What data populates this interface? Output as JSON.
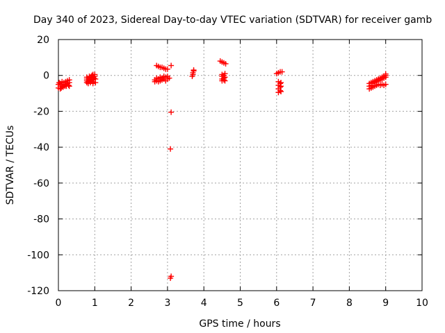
{
  "chart_data": {
    "type": "scatter",
    "title": "Day 340 of 2023, Sidereal Day-to-day VTEC variation (SDTVAR) for receiver gamb",
    "xlabel": "GPS time / hours",
    "ylabel": "SDTVAR / TECUs",
    "xlim": [
      0,
      10
    ],
    "ylim": [
      -120,
      20
    ],
    "grid": true,
    "x_ticks": [
      0,
      1,
      2,
      3,
      4,
      5,
      6,
      7,
      8,
      9,
      10
    ],
    "y_ticks": [
      -120,
      -100,
      -80,
      -60,
      -40,
      -20,
      0,
      20
    ],
    "x_tick_labels": [
      "0",
      "1",
      "2",
      "3",
      "4",
      "5",
      "6",
      "7",
      "8",
      "9",
      "10"
    ],
    "y_tick_labels": [
      "-120",
      "-100",
      "-80",
      "-60",
      "-40",
      "-20",
      "0",
      "20"
    ],
    "marker": "+",
    "color": "#ff0000",
    "series": [
      {
        "name": "SDTVAR",
        "points": [
          [
            0.0,
            -7
          ],
          [
            0.0,
            -5
          ],
          [
            0.02,
            -4
          ],
          [
            0.05,
            -7.5
          ],
          [
            0.05,
            -6
          ],
          [
            0.05,
            -4.5
          ],
          [
            0.08,
            -7
          ],
          [
            0.1,
            -6
          ],
          [
            0.1,
            -5
          ],
          [
            0.1,
            -3.5
          ],
          [
            0.13,
            -6.5
          ],
          [
            0.15,
            -5.5
          ],
          [
            0.15,
            -4
          ],
          [
            0.18,
            -6
          ],
          [
            0.2,
            -5
          ],
          [
            0.2,
            -3.5
          ],
          [
            0.22,
            -6
          ],
          [
            0.25,
            -4.5
          ],
          [
            0.25,
            -3
          ],
          [
            0.28,
            -5.5
          ],
          [
            0.3,
            -4
          ],
          [
            0.3,
            -2.5
          ],
          [
            0.3,
            -6
          ],
          [
            0.78,
            -4
          ],
          [
            0.78,
            -3
          ],
          [
            0.78,
            -2
          ],
          [
            0.78,
            -1
          ],
          [
            0.82,
            -4.5
          ],
          [
            0.82,
            -3.5
          ],
          [
            0.85,
            -2.5
          ],
          [
            0.85,
            -1.5
          ],
          [
            0.85,
            -0.5
          ],
          [
            0.88,
            -4
          ],
          [
            0.9,
            -3
          ],
          [
            0.9,
            -2
          ],
          [
            0.9,
            -1
          ],
          [
            0.92,
            0
          ],
          [
            0.95,
            -4.5
          ],
          [
            0.95,
            -3.5
          ],
          [
            0.95,
            -2.5
          ],
          [
            0.98,
            -1.5
          ],
          [
            1.0,
            -0.5
          ],
          [
            1.0,
            0.5
          ],
          [
            1.02,
            -4
          ],
          [
            1.02,
            -2
          ],
          [
            0.95,
            0.5
          ],
          [
            2.65,
            -3.5
          ],
          [
            2.65,
            -2.5
          ],
          [
            2.7,
            -3
          ],
          [
            2.7,
            -1.5
          ],
          [
            2.75,
            -3.5
          ],
          [
            2.75,
            -2
          ],
          [
            2.8,
            -1
          ],
          [
            2.8,
            -3
          ],
          [
            2.85,
            -2.5
          ],
          [
            2.85,
            -1.5
          ],
          [
            2.9,
            -2
          ],
          [
            2.9,
            -0.5
          ],
          [
            2.95,
            -3
          ],
          [
            2.95,
            -1
          ],
          [
            3.0,
            -2
          ],
          [
            3.0,
            -0.5
          ],
          [
            3.05,
            -1.5
          ],
          [
            2.7,
            5.5
          ],
          [
            2.75,
            5
          ],
          [
            2.8,
            4.5
          ],
          [
            2.85,
            4.5
          ],
          [
            2.9,
            4
          ],
          [
            2.95,
            3.5
          ],
          [
            3.0,
            3.5
          ],
          [
            3.1,
            5.5
          ],
          [
            3.1,
            -20.5
          ],
          [
            3.08,
            -41
          ],
          [
            3.1,
            -112
          ],
          [
            3.08,
            -113
          ],
          [
            3.68,
            -0.5
          ],
          [
            3.7,
            0.5
          ],
          [
            3.7,
            1.5
          ],
          [
            3.72,
            2.5
          ],
          [
            3.72,
            3
          ],
          [
            4.45,
            8
          ],
          [
            4.5,
            7.5
          ],
          [
            4.55,
            7
          ],
          [
            4.6,
            6.5
          ],
          [
            4.5,
            -3
          ],
          [
            4.5,
            -2
          ],
          [
            4.5,
            -0.5
          ],
          [
            4.5,
            0.5
          ],
          [
            4.55,
            -2.5
          ],
          [
            4.55,
            -1.5
          ],
          [
            4.55,
            0
          ],
          [
            4.58,
            -3
          ],
          [
            4.58,
            -1
          ],
          [
            4.58,
            1
          ],
          [
            6.05,
            -9.5
          ],
          [
            6.05,
            -7.5
          ],
          [
            6.05,
            -5.5
          ],
          [
            6.05,
            -3.5
          ],
          [
            6.1,
            -8.5
          ],
          [
            6.1,
            -6.5
          ],
          [
            6.1,
            -4.5
          ],
          [
            6.12,
            -9
          ],
          [
            6.12,
            -6
          ],
          [
            6.12,
            -4
          ],
          [
            6.0,
            1
          ],
          [
            6.05,
            1.5
          ],
          [
            6.1,
            2
          ],
          [
            6.15,
            2
          ],
          [
            8.55,
            -7.5
          ],
          [
            8.55,
            -6
          ],
          [
            8.55,
            -4.5
          ],
          [
            8.6,
            -7
          ],
          [
            8.6,
            -5.5
          ],
          [
            8.6,
            -4
          ],
          [
            8.65,
            -6.5
          ],
          [
            8.65,
            -4.5
          ],
          [
            8.65,
            -3.5
          ],
          [
            8.7,
            -6
          ],
          [
            8.7,
            -4
          ],
          [
            8.7,
            -3
          ],
          [
            8.75,
            -5.5
          ],
          [
            8.75,
            -3.5
          ],
          [
            8.75,
            -2.5
          ],
          [
            8.8,
            -5
          ],
          [
            8.8,
            -3
          ],
          [
            8.8,
            -2
          ],
          [
            8.85,
            -5.5
          ],
          [
            8.85,
            -2.5
          ],
          [
            8.85,
            -1.5
          ],
          [
            8.9,
            -5
          ],
          [
            8.9,
            -2
          ],
          [
            8.9,
            -1
          ],
          [
            8.95,
            -5.5
          ],
          [
            8.95,
            -1.5
          ],
          [
            8.95,
            -0.5
          ],
          [
            9.0,
            -5
          ],
          [
            9.0,
            -1
          ],
          [
            9.0,
            0
          ],
          [
            9.0,
            0.8
          ]
        ]
      }
    ]
  }
}
